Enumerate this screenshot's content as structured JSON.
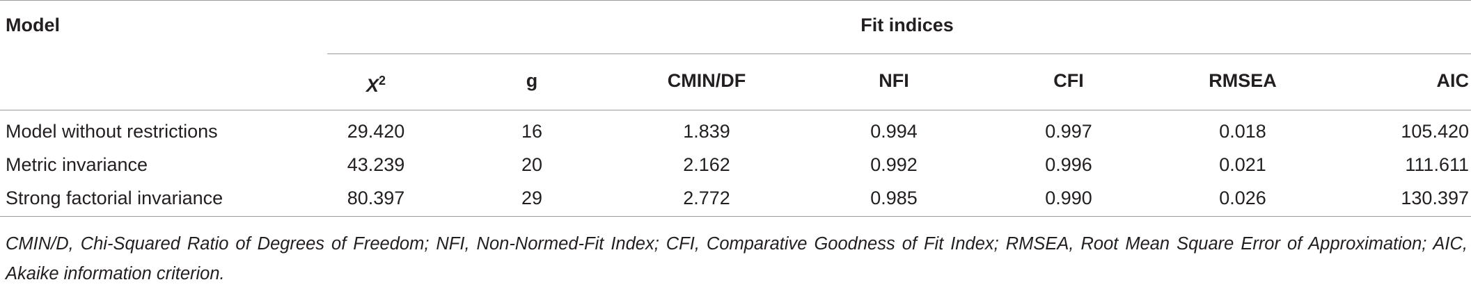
{
  "table": {
    "header": {
      "model": "Model",
      "group": "Fit indices",
      "columns": [
        {
          "base": "X",
          "sup": "2"
        },
        "g",
        "CMIN/DF",
        "NFI",
        "CFI",
        "RMSEA",
        "AIC"
      ]
    },
    "rows": [
      [
        "Model without restrictions",
        "29.420",
        "16",
        "1.839",
        "0.994",
        "0.997",
        "0.018",
        "105.420"
      ],
      [
        "Metric invariance",
        "43.239",
        "20",
        "2.162",
        "0.992",
        "0.996",
        "0.021",
        "111.611"
      ],
      [
        "Strong factorial invariance",
        "80.397",
        "29",
        "2.772",
        "0.985",
        "0.990",
        "0.026",
        "130.397"
      ]
    ],
    "footnote": "CMIN/D, Chi-Squared Ratio of Degrees of Freedom; NFI, Non-Normed-Fit Index; CFI, Comparative Goodness of Fit Index; RMSEA, Root Mean Square Error of Approximation; AIC, Akaike information criterion."
  }
}
